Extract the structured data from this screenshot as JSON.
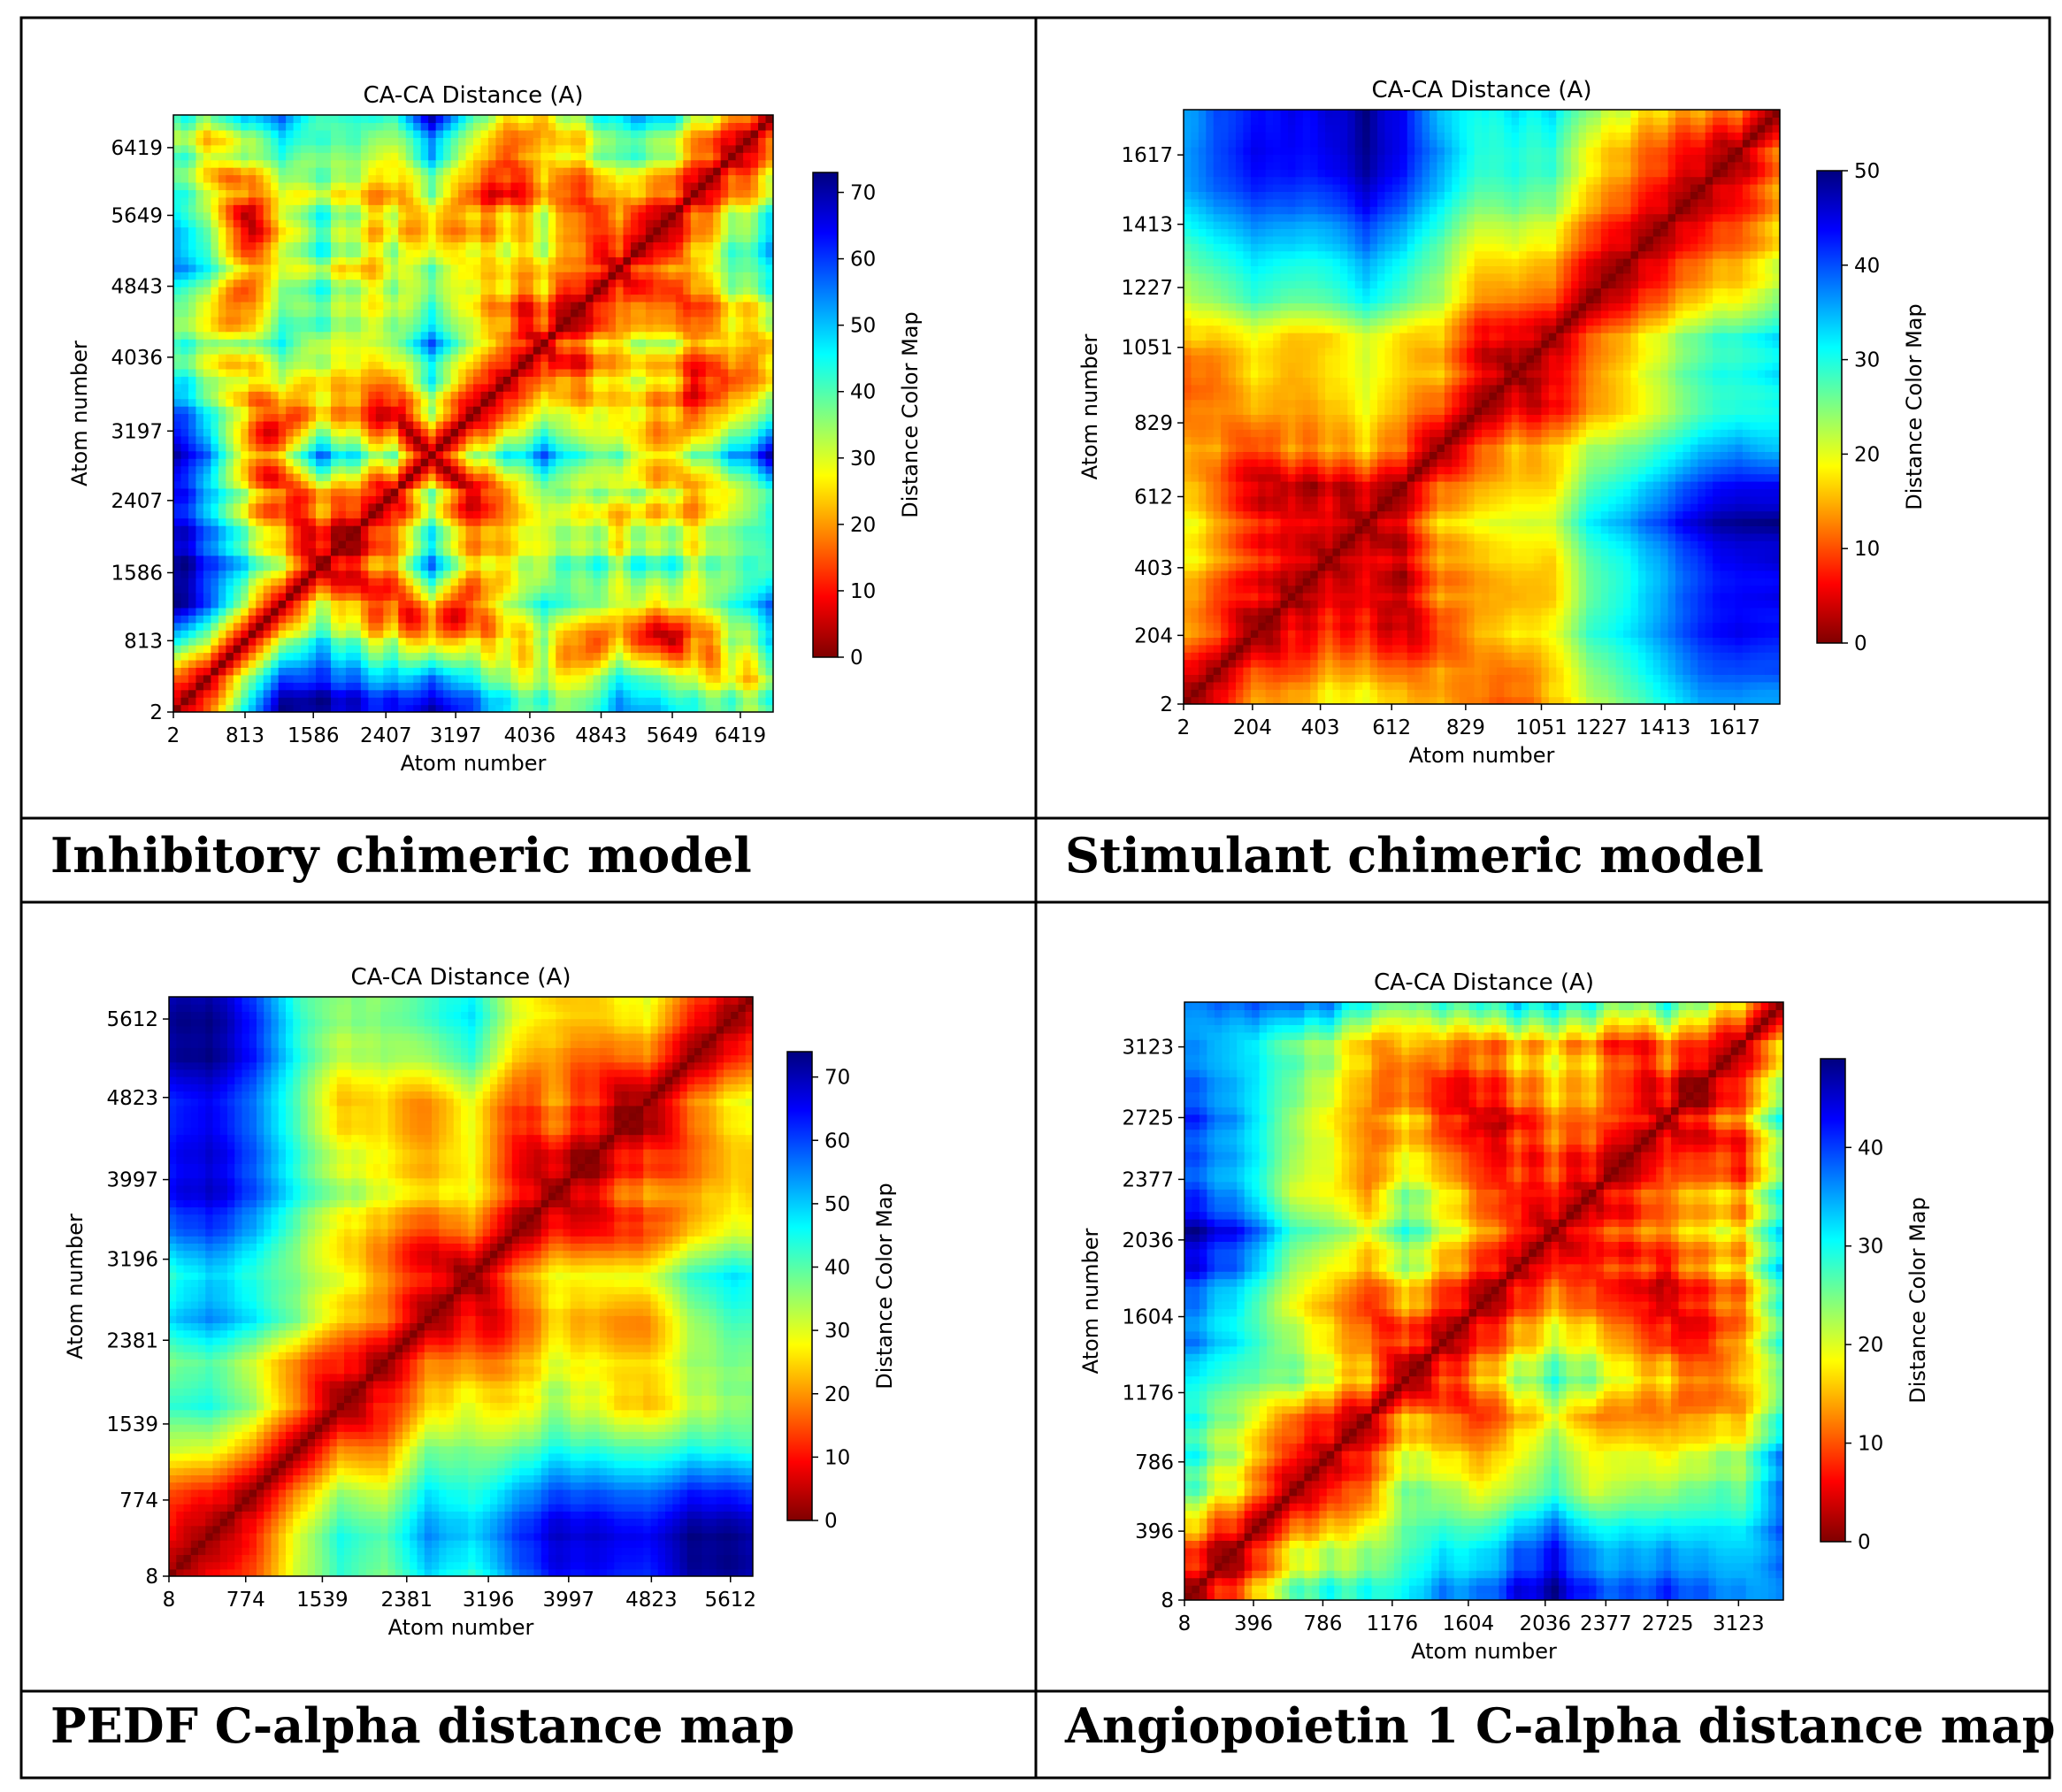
{
  "figure": {
    "captions": [
      "Inhibitory chimeric model",
      "Stimulant chimeric model",
      "PEDF C-alpha distance map",
      "Angiopoietin 1 C-alpha distance map"
    ]
  },
  "colors": {
    "border": "#000000",
    "jet": [
      "#7f0000",
      "#ff0000",
      "#ff8000",
      "#ffff00",
      "#80ff80",
      "#00ffff",
      "#0080ff",
      "#0000ff",
      "#00007f"
    ]
  },
  "chart_data": [
    {
      "type": "heatmap",
      "title": "CA-CA Distance (A)",
      "xlabel": "Atom number",
      "ylabel": "Atom number",
      "xticks": [
        "2",
        "813",
        "1586",
        "2407",
        "3197",
        "4036",
        "4843",
        "5649",
        "6419"
      ],
      "yticks": [
        "2",
        "813",
        "1586",
        "2407",
        "3197",
        "4036",
        "4843",
        "5649",
        "6419"
      ],
      "tick_values": [
        2,
        813,
        1586,
        2407,
        3197,
        4036,
        4843,
        5649,
        6419
      ],
      "axis_range": [
        2,
        6790
      ],
      "colorbar": {
        "label": "Distance Color Map",
        "vmin": 0,
        "vmax": 73,
        "ticks": [
          0,
          10,
          20,
          30,
          40,
          50,
          60,
          70
        ],
        "tick_labels": [
          "0",
          "10",
          "20",
          "30",
          "40",
          "50",
          "60",
          "70"
        ]
      },
      "colormap": "jet_r",
      "diagonal_value": 0,
      "pattern": {
        "seed": 11,
        "n_segments": 16
      }
    },
    {
      "type": "heatmap",
      "title": "CA-CA Distance (A)",
      "xlabel": "Atom number",
      "ylabel": "Atom number",
      "xticks": [
        "2",
        "204",
        "403",
        "612",
        "829",
        "1051",
        "1227",
        "1413",
        "1617"
      ],
      "yticks": [
        "2",
        "204",
        "403",
        "612",
        "829",
        "1051",
        "1227",
        "1413",
        "1617"
      ],
      "tick_values": [
        2,
        204,
        403,
        612,
        829,
        1051,
        1227,
        1413,
        1617
      ],
      "axis_range": [
        2,
        1750
      ],
      "colorbar": {
        "label": "Distance Color Map",
        "vmin": 0,
        "vmax": 50,
        "ticks": [
          0,
          10,
          20,
          30,
          40,
          50
        ],
        "tick_labels": [
          "0",
          "10",
          "20",
          "30",
          "40",
          "50"
        ]
      },
      "colormap": "jet_r",
      "diagonal_value": 0,
      "pattern": {
        "seed": 23,
        "n_segments": 18
      }
    },
    {
      "type": "heatmap",
      "title": "CA-CA Distance (A)",
      "xlabel": "Atom number",
      "ylabel": "Atom number",
      "xticks": [
        "8",
        "774",
        "1539",
        "2381",
        "3196",
        "3997",
        "4823",
        "5612"
      ],
      "yticks": [
        "8",
        "774",
        "1539",
        "2381",
        "3196",
        "3997",
        "4823",
        "5612"
      ],
      "tick_values": [
        8,
        774,
        1539,
        2381,
        3196,
        3997,
        4823,
        5612
      ],
      "axis_range": [
        8,
        5835
      ],
      "colorbar": {
        "label": "Distance Color Map",
        "vmin": 0,
        "vmax": 74,
        "ticks": [
          0,
          10,
          20,
          30,
          40,
          50,
          60,
          70
        ],
        "tick_labels": [
          "0",
          "10",
          "20",
          "30",
          "40",
          "50",
          "60",
          "70"
        ]
      },
      "colormap": "jet_r",
      "diagonal_value": 0,
      "pattern": {
        "seed": 37,
        "n_segments": 15
      }
    },
    {
      "type": "heatmap",
      "title": "CA-CA Distance (A)",
      "xlabel": "Atom number",
      "ylabel": "Atom number",
      "xticks": [
        "8",
        "396",
        "786",
        "1176",
        "1604",
        "2036",
        "2377",
        "2725",
        "3123"
      ],
      "yticks": [
        "8",
        "396",
        "786",
        "1176",
        "1604",
        "2036",
        "2377",
        "2725",
        "3123"
      ],
      "tick_values": [
        8,
        396,
        786,
        1176,
        1604,
        2036,
        2377,
        2725,
        3123
      ],
      "axis_range": [
        8,
        3375
      ],
      "colorbar": {
        "label": "Distance Color Map",
        "vmin": 0,
        "vmax": 49,
        "ticks": [
          0,
          10,
          20,
          30,
          40
        ],
        "tick_labels": [
          "0",
          "10",
          "20",
          "30",
          "40"
        ]
      },
      "colormap": "jet_r",
      "diagonal_value": 0,
      "pattern": {
        "seed": 53,
        "n_segments": 18
      }
    }
  ]
}
